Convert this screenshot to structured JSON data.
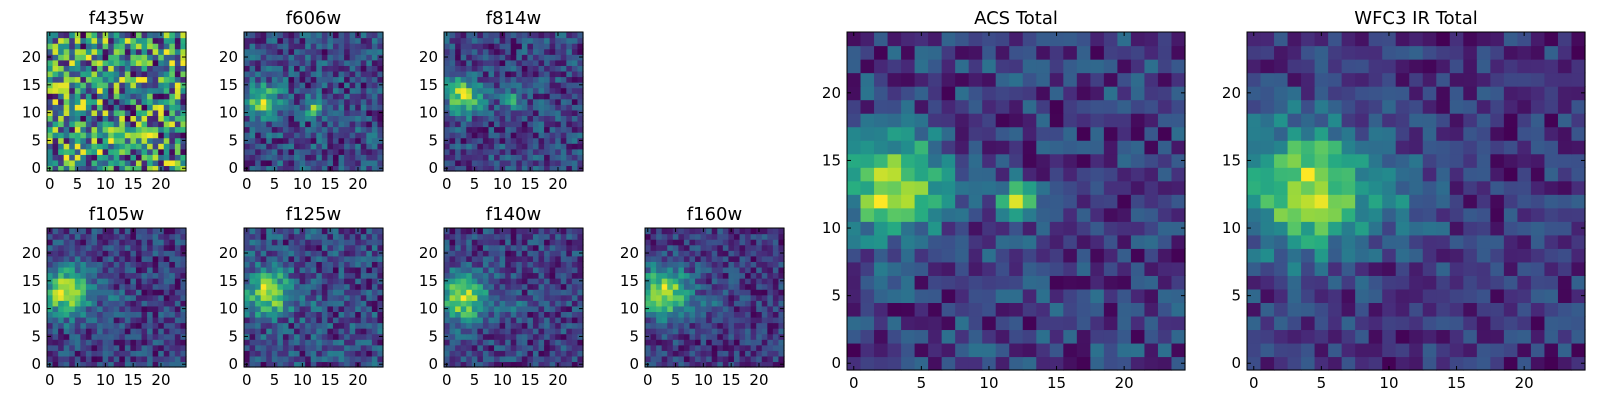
{
  "figure": {
    "background": "#ffffff",
    "colormap": "viridis"
  },
  "chart_data": [
    {
      "type": "heatmap",
      "title": "f435w",
      "grid_size": 25,
      "xlim": [
        -0.5,
        24.5
      ],
      "ylim": [
        -0.5,
        24.5
      ],
      "xticks": [
        0,
        5,
        10,
        15,
        20
      ],
      "yticks": [
        0,
        5,
        10,
        15,
        20
      ],
      "sources": [],
      "noise": 0.28,
      "base": 0.68
    },
    {
      "type": "heatmap",
      "title": "f606w",
      "grid_size": 25,
      "xlim": [
        -0.5,
        24.5
      ],
      "ylim": [
        -0.5,
        24.5
      ],
      "xticks": [
        0,
        5,
        10,
        15,
        20
      ],
      "yticks": [
        0,
        5,
        10,
        15,
        20
      ],
      "sources": [
        {
          "x": 3,
          "y": 12,
          "amp": 0.55,
          "sigma": 2.2
        },
        {
          "x": 12,
          "y": 11,
          "amp": 0.45,
          "sigma": 1.1
        }
      ],
      "noise": 0.22,
      "base": 0.5
    },
    {
      "type": "heatmap",
      "title": "f814w",
      "grid_size": 25,
      "xlim": [
        -0.5,
        24.5
      ],
      "ylim": [
        -0.5,
        24.5
      ],
      "xticks": [
        0,
        5,
        10,
        15,
        20
      ],
      "yticks": [
        0,
        5,
        10,
        15,
        20
      ],
      "sources": [
        {
          "x": 3,
          "y": 13,
          "amp": 0.65,
          "sigma": 2.2
        },
        {
          "x": 12,
          "y": 12,
          "amp": 0.45,
          "sigma": 1.0
        }
      ],
      "noise": 0.2,
      "base": 0.42
    },
    {
      "type": "heatmap",
      "title": "f105w",
      "grid_size": 25,
      "xlim": [
        -0.5,
        24.5
      ],
      "ylim": [
        -0.5,
        24.5
      ],
      "xticks": [
        0,
        5,
        10,
        15,
        20
      ],
      "yticks": [
        0,
        5,
        10,
        15,
        20
      ],
      "sources": [
        {
          "x": 3,
          "y": 13,
          "amp": 0.6,
          "sigma": 3.0
        },
        {
          "x": 12,
          "y": 11,
          "amp": 0.15,
          "sigma": 1.5
        }
      ],
      "noise": 0.16,
      "base": 0.45
    },
    {
      "type": "heatmap",
      "title": "f125w",
      "grid_size": 25,
      "xlim": [
        -0.5,
        24.5
      ],
      "ylim": [
        -0.5,
        24.5
      ],
      "xticks": [
        0,
        5,
        10,
        15,
        20
      ],
      "yticks": [
        0,
        5,
        10,
        15,
        20
      ],
      "sources": [
        {
          "x": 4,
          "y": 13,
          "amp": 0.55,
          "sigma": 2.8
        },
        {
          "x": 12,
          "y": 11,
          "amp": 0.12,
          "sigma": 1.5
        }
      ],
      "noise": 0.18,
      "base": 0.45
    },
    {
      "type": "heatmap",
      "title": "f140w",
      "grid_size": 25,
      "xlim": [
        -0.5,
        24.5
      ],
      "ylim": [
        -0.5,
        24.5
      ],
      "xticks": [
        0,
        5,
        10,
        15,
        20
      ],
      "yticks": [
        0,
        5,
        10,
        15,
        20
      ],
      "sources": [
        {
          "x": 3,
          "y": 12,
          "amp": 0.6,
          "sigma": 3.0
        },
        {
          "x": 12,
          "y": 11,
          "amp": 0.12,
          "sigma": 1.5
        }
      ],
      "noise": 0.17,
      "base": 0.45
    },
    {
      "type": "heatmap",
      "title": "f160w",
      "grid_size": 25,
      "xlim": [
        -0.5,
        24.5
      ],
      "ylim": [
        -0.5,
        24.5
      ],
      "xticks": [
        0,
        5,
        10,
        15,
        20
      ],
      "yticks": [
        0,
        5,
        10,
        15,
        20
      ],
      "sources": [
        {
          "x": 3,
          "y": 13,
          "amp": 0.65,
          "sigma": 3.2
        },
        {
          "x": 12,
          "y": 11,
          "amp": 0.12,
          "sigma": 1.8
        }
      ],
      "noise": 0.16,
      "base": 0.42
    },
    {
      "type": "heatmap",
      "title": "ACS Total",
      "grid_size": 25,
      "xlim": [
        -0.5,
        24.5
      ],
      "ylim": [
        -0.5,
        24.5
      ],
      "xticks": [
        0,
        5,
        10,
        15,
        20
      ],
      "yticks": [
        0,
        5,
        10,
        15,
        20
      ],
      "sources": [
        {
          "x": 3,
          "y": 13,
          "amp": 0.6,
          "sigma": 2.6
        },
        {
          "x": 12,
          "y": 12,
          "amp": 0.5,
          "sigma": 1.0
        }
      ],
      "noise": 0.15,
      "base": 0.5
    },
    {
      "type": "heatmap",
      "title": "WFC3 IR Total",
      "grid_size": 25,
      "xlim": [
        -0.5,
        24.5
      ],
      "ylim": [
        -0.5,
        24.5
      ],
      "xticks": [
        0,
        5,
        10,
        15,
        20
      ],
      "yticks": [
        0,
        5,
        10,
        15,
        20
      ],
      "sources": [
        {
          "x": 4,
          "y": 13,
          "amp": 0.55,
          "sigma": 3.4
        },
        {
          "x": 12,
          "y": 12,
          "amp": 0.15,
          "sigma": 1.8
        }
      ],
      "noise": 0.12,
      "base": 0.42
    }
  ]
}
